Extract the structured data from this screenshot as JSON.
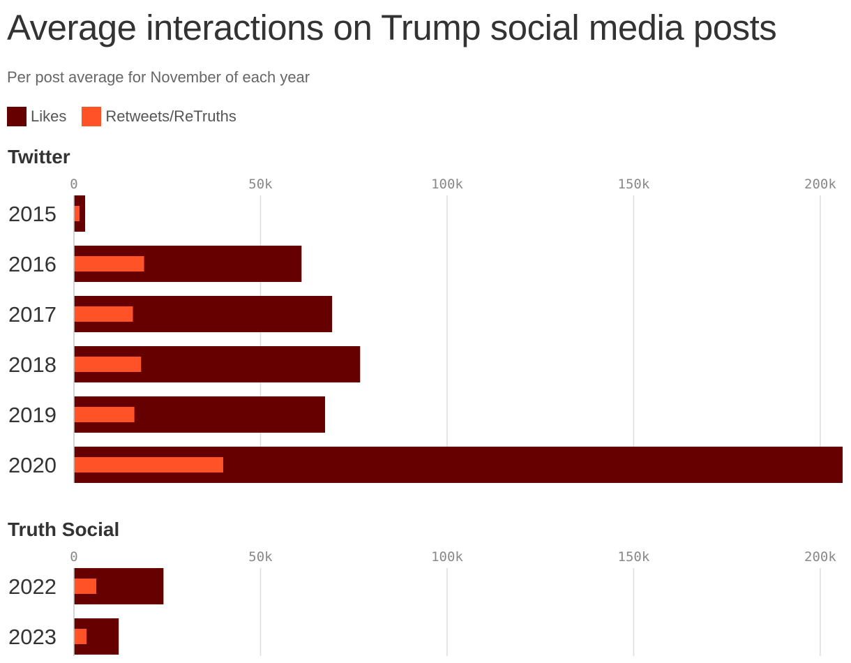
{
  "title": "Average interactions on Trump social media posts",
  "subtitle": "Per post average for November of each year",
  "colors": {
    "likes": "#660000",
    "retweets": "#ff5226",
    "grid": "#dddddd"
  },
  "legend": [
    {
      "label": "Likes",
      "color": "#660000"
    },
    {
      "label": "Retweets/ReTruths",
      "color": "#ff5226"
    }
  ],
  "chart_data": [
    {
      "type": "bar",
      "orientation": "horizontal",
      "title": "Twitter",
      "categories": [
        "2015",
        "2016",
        "2017",
        "2018",
        "2019",
        "2020"
      ],
      "series": [
        {
          "name": "Likes",
          "values": [
            3000,
            61000,
            69200,
            76700,
            67300,
            206000
          ]
        },
        {
          "name": "Retweets/ReTruths",
          "values": [
            1500,
            18800,
            15800,
            18000,
            16200,
            40000
          ]
        }
      ],
      "xlim": [
        0,
        206000
      ],
      "ticks": [
        0,
        50000,
        100000,
        150000,
        200000
      ],
      "tick_labels": [
        "0",
        "50k",
        "100k",
        "150k",
        "200k"
      ]
    },
    {
      "type": "bar",
      "orientation": "horizontal",
      "title": "Truth Social",
      "categories": [
        "2022",
        "2023"
      ],
      "series": [
        {
          "name": "Likes",
          "values": [
            24000,
            12000
          ]
        },
        {
          "name": "Retweets/ReTruths",
          "values": [
            6000,
            3400
          ]
        }
      ],
      "xlim": [
        0,
        206000
      ],
      "ticks": [
        0,
        50000,
        100000,
        150000,
        200000
      ],
      "tick_labels": [
        "0",
        "50k",
        "100k",
        "150k",
        "200k"
      ]
    }
  ]
}
